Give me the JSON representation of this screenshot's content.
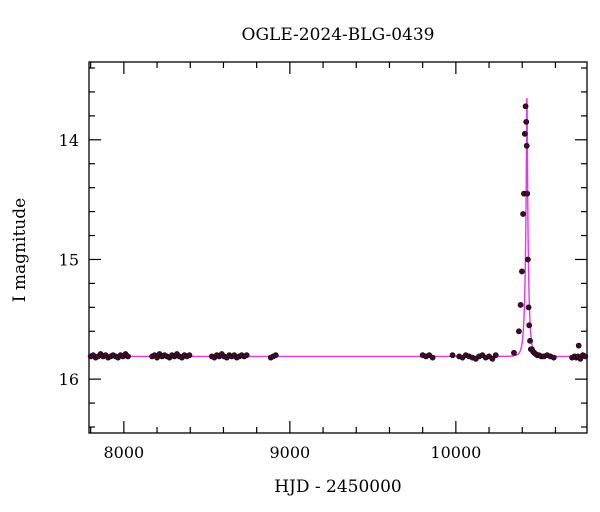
{
  "chart_data": {
    "type": "scatter",
    "title": "OGLE-2024-BLG-0439",
    "xlabel": "HJD - 2450000",
    "ylabel": "I magnitude",
    "xlim": [
      7790,
      10790
    ],
    "ylim": [
      16.45,
      13.35
    ],
    "y_inverted": true,
    "grid": false,
    "legend": "none",
    "x_major_ticks": [
      8000,
      9000,
      10000
    ],
    "x_minor_step": 200,
    "y_major_ticks": [
      14,
      15,
      16
    ],
    "y_minor_step": 0.2,
    "baseline_mag": 15.81,
    "peak_time": 10428,
    "peak_mag": 13.65,
    "einstein_time": 18,
    "colors": {
      "data": "#3a0f2a",
      "model": "#e238e8",
      "axes": "#000000"
    },
    "series": [
      {
        "type": "points",
        "x": [
          7800,
          7815,
          7830,
          7845,
          7860,
          7875,
          7890,
          7905,
          7920,
          7935,
          7950,
          7965,
          7980,
          7995,
          8010,
          8025,
          8170,
          8185,
          8200,
          8215,
          8230,
          8245,
          8260,
          8275,
          8290,
          8305,
          8320,
          8335,
          8350,
          8365,
          8380,
          8395,
          8530,
          8545,
          8560,
          8575,
          8590,
          8605,
          8620,
          8635,
          8650,
          8665,
          8680,
          8695,
          8710,
          8725,
          8740,
          8885,
          8900,
          8915,
          9800,
          9820,
          9840,
          9860,
          9980,
          10020,
          10040,
          10060,
          10080,
          10100,
          10120,
          10140,
          10160,
          10180,
          10200,
          10220,
          10240,
          10350,
          10380,
          10390,
          10398,
          10405,
          10410,
          10415,
          10420,
          10424,
          10427,
          10430,
          10434,
          10438,
          10442,
          10447,
          10452,
          10458,
          10465,
          10472,
          10480,
          10490,
          10500,
          10515,
          10530,
          10550,
          10570,
          10590,
          10700,
          10715,
          10725,
          10735,
          10750,
          10765,
          10780,
          10740
        ],
        "y": [
          15.81,
          15.8,
          15.82,
          15.81,
          15.79,
          15.81,
          15.8,
          15.82,
          15.81,
          15.8,
          15.81,
          15.82,
          15.8,
          15.81,
          15.79,
          15.81,
          15.81,
          15.8,
          15.82,
          15.79,
          15.81,
          15.8,
          15.81,
          15.82,
          15.8,
          15.81,
          15.79,
          15.81,
          15.82,
          15.8,
          15.81,
          15.8,
          15.81,
          15.82,
          15.8,
          15.81,
          15.79,
          15.81,
          15.82,
          15.8,
          15.81,
          15.8,
          15.82,
          15.81,
          15.8,
          15.81,
          15.8,
          15.82,
          15.81,
          15.8,
          15.8,
          15.81,
          15.8,
          15.82,
          15.8,
          15.81,
          15.82,
          15.8,
          15.81,
          15.82,
          15.83,
          15.81,
          15.8,
          15.82,
          15.81,
          15.83,
          15.8,
          15.78,
          15.6,
          15.38,
          15.1,
          14.62,
          14.45,
          13.95,
          13.72,
          13.85,
          14.05,
          14.45,
          15.0,
          15.4,
          15.55,
          15.68,
          15.75,
          15.75,
          15.77,
          15.78,
          15.79,
          15.8,
          15.8,
          15.81,
          15.81,
          15.8,
          15.81,
          15.82,
          15.82,
          15.81,
          15.82,
          15.81,
          15.83,
          15.8,
          15.81,
          15.72
        ]
      }
    ]
  }
}
